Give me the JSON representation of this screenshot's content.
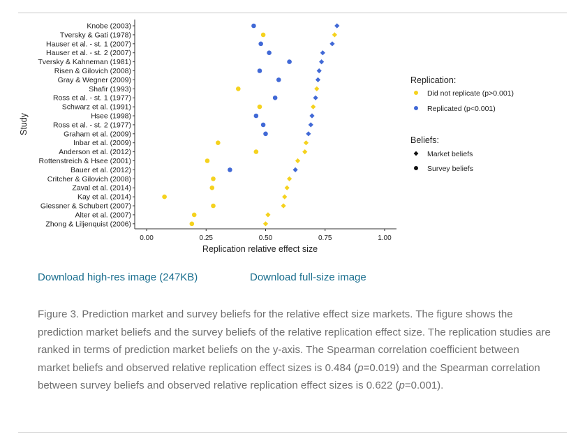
{
  "chart_data": {
    "type": "scatter",
    "ylabel": "Study",
    "xlabel": "Replication relative effect size",
    "xlim": [
      -0.05,
      1.05
    ],
    "xticks": [
      "0.00",
      "0.25",
      "0.50",
      "0.75",
      "1.00"
    ],
    "xtick_values": [
      0,
      0.25,
      0.5,
      0.75,
      1.0
    ],
    "studies": [
      "Knobe (2003)",
      "Tversky & Gati (1978)",
      "Hauser et al. - st. 1 (2007)",
      "Hauser et al. - st. 2 (2007)",
      "Tversky & Kahneman (1981)",
      "Risen & Gilovich (2008)",
      "Gray & Wegner (2009)",
      "Shafir (1993)",
      "Ross et al. - st. 1 (1977)",
      "Schwarz et al. (1991)",
      "Hsee (1998)",
      "Ross et al. - st. 2 (1977)",
      "Graham et al. (2009)",
      "Inbar et al. (2009)",
      "Anderson et al. (2012)",
      "Rottenstreich & Hsee (2001)",
      "Bauer et al. (2012)",
      "Critcher & Gilovich (2008)",
      "Zaval et al. (2014)",
      "Kay et al. (2014)",
      "Giessner & Schubert (2007)",
      "Alter et al. (2007)",
      "Zhong & Liljenquist (2006)"
    ],
    "replicated": [
      true,
      false,
      true,
      true,
      true,
      true,
      true,
      false,
      true,
      false,
      true,
      true,
      true,
      false,
      false,
      false,
      true,
      false,
      false,
      false,
      false,
      false,
      false
    ],
    "series": [
      {
        "name": "Market beliefs",
        "marker": "diamond",
        "values": [
          0.8,
          0.79,
          0.78,
          0.74,
          0.735,
          0.725,
          0.72,
          0.715,
          0.71,
          0.7,
          0.695,
          0.69,
          0.68,
          0.67,
          0.665,
          0.635,
          0.625,
          0.6,
          0.59,
          0.58,
          0.575,
          0.51,
          0.5
        ]
      },
      {
        "name": "Survey beliefs",
        "marker": "circle",
        "values": [
          0.45,
          0.49,
          0.48,
          0.515,
          0.6,
          0.475,
          0.555,
          0.385,
          0.54,
          0.475,
          0.46,
          0.49,
          0.5,
          0.3,
          0.46,
          0.255,
          0.35,
          0.28,
          0.275,
          0.075,
          0.28,
          0.2,
          0.19
        ]
      }
    ],
    "legend": {
      "position": "right",
      "replication_title": "Replication:",
      "replication_items": [
        {
          "label": "Did not replicate (p>0.001)",
          "color": "#f5d21e"
        },
        {
          "label": "Replicated (p<0.001)",
          "color": "#4169d6"
        }
      ],
      "beliefs_title": "Beliefs:",
      "beliefs_items": [
        {
          "label": "Market beliefs",
          "marker": "diamond"
        },
        {
          "label": "Survey beliefs",
          "marker": "circle"
        }
      ]
    }
  },
  "colors": {
    "replicated": "#4169d6",
    "not_replicated": "#f5d21e",
    "link": "#1a6e8e",
    "caption": "#6f6f6f"
  },
  "links": {
    "hires": "Download high-res image (247KB)",
    "full": "Download full-size image"
  },
  "caption": {
    "text_1": "Figure 3. Prediction market and survey beliefs for the relative effect size markets. The figure shows the prediction market beliefs and the survey beliefs of the relative replication effect size. The replication studies are ranked in terms of prediction market beliefs on the y-axis. The Spearman correlation coefficient between market beliefs and observed relative replication effect sizes is 0.484 (",
    "p": "p",
    "text_2": "=0.019) and the Spearman correlation between survey beliefs and observed relative replication effect sizes is 0.622 (",
    "text_3": "=0.001)."
  }
}
